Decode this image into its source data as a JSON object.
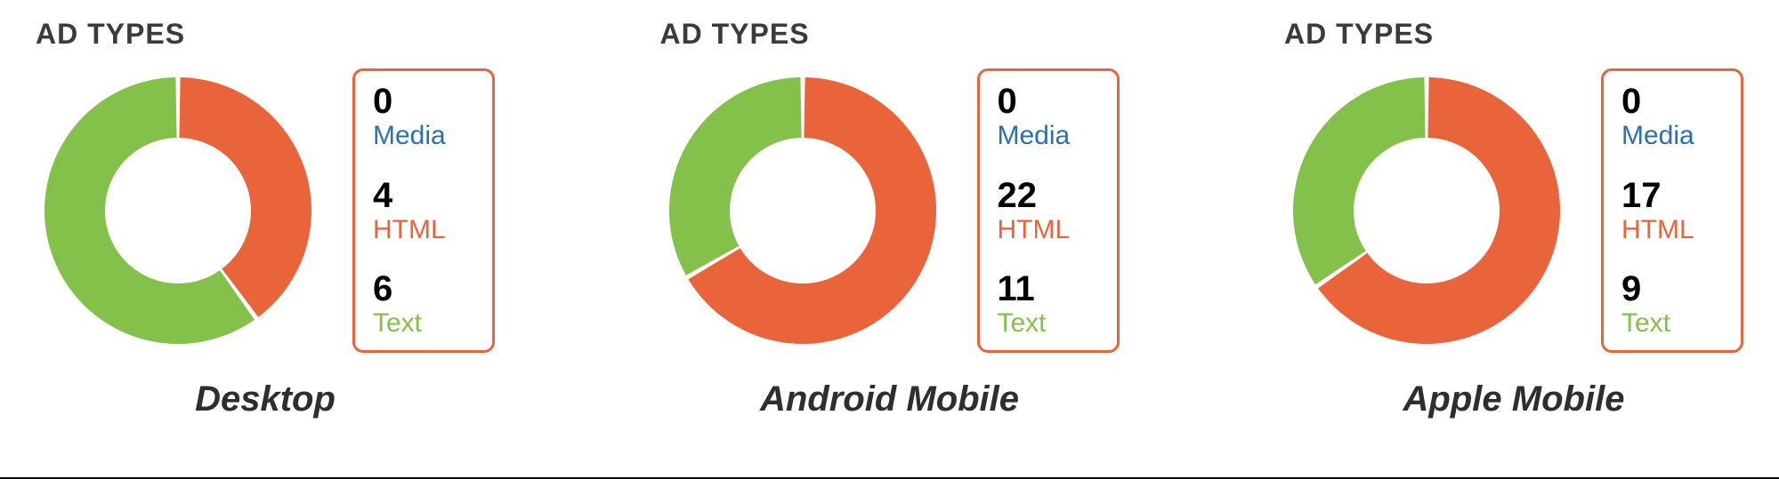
{
  "background_color": "#ffffff",
  "bottom_border_color": "#000000",
  "panel_title_color": "#3b3b3b",
  "caption_color": "#2e2e2e",
  "panels": [
    {
      "title": "AD TYPES",
      "caption": "Desktop",
      "donut": {
        "type": "donut",
        "outer_radius": 150,
        "inner_radius": 82,
        "start_angle_deg": 0,
        "gap_deg": 2,
        "slices": [
          {
            "key": "html",
            "value": 4,
            "color": "#e9643a"
          },
          {
            "key": "text",
            "value": 6,
            "color": "#84c14a"
          },
          {
            "key": "media",
            "value": 0,
            "color": "#2a6fb5"
          }
        ]
      },
      "legend": {
        "border_color": "#e9643a",
        "value_color": "#000000",
        "items": [
          {
            "value": "0",
            "label": "Media",
            "label_color": "#2a6fb5"
          },
          {
            "value": "4",
            "label": "HTML",
            "label_color": "#e9643a"
          },
          {
            "value": "6",
            "label": "Text",
            "label_color": "#84c14a"
          }
        ]
      }
    },
    {
      "title": "AD TYPES",
      "caption": "Android Mobile",
      "donut": {
        "type": "donut",
        "outer_radius": 150,
        "inner_radius": 82,
        "start_angle_deg": 0,
        "gap_deg": 2,
        "slices": [
          {
            "key": "html",
            "value": 22,
            "color": "#e9643a"
          },
          {
            "key": "text",
            "value": 11,
            "color": "#84c14a"
          },
          {
            "key": "media",
            "value": 0,
            "color": "#2a6fb5"
          }
        ]
      },
      "legend": {
        "border_color": "#e9643a",
        "value_color": "#000000",
        "items": [
          {
            "value": "0",
            "label": "Media",
            "label_color": "#2a6fb5"
          },
          {
            "value": "22",
            "label": "HTML",
            "label_color": "#e9643a"
          },
          {
            "value": "11",
            "label": "Text",
            "label_color": "#84c14a"
          }
        ]
      }
    },
    {
      "title": "AD TYPES",
      "caption": "Apple Mobile",
      "donut": {
        "type": "donut",
        "outer_radius": 150,
        "inner_radius": 82,
        "start_angle_deg": 0,
        "gap_deg": 2,
        "slices": [
          {
            "key": "html",
            "value": 17,
            "color": "#e9643a"
          },
          {
            "key": "text",
            "value": 9,
            "color": "#84c14a"
          },
          {
            "key": "media",
            "value": 0,
            "color": "#2a6fb5"
          }
        ]
      },
      "legend": {
        "border_color": "#e9643a",
        "value_color": "#000000",
        "items": [
          {
            "value": "0",
            "label": "Media",
            "label_color": "#2a6fb5"
          },
          {
            "value": "17",
            "label": "HTML",
            "label_color": "#e9643a"
          },
          {
            "value": "9",
            "label": "Text",
            "label_color": "#84c14a"
          }
        ]
      }
    }
  ]
}
